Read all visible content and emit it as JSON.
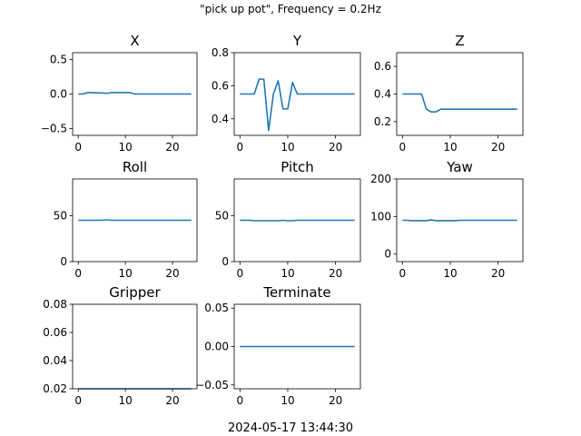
{
  "figure": {
    "suptitle": "\"pick up pot\", Frequency = 0.2Hz",
    "footer": "2024-05-17 13:44:30",
    "line_color": "#1f77b4"
  },
  "chart_data": [
    {
      "type": "line",
      "title": "X",
      "xlim": [
        -1.2,
        25.2
      ],
      "ylim": [
        -0.6,
        0.6
      ],
      "xticks": [
        0,
        10,
        20
      ],
      "yticks": [
        -0.5,
        0.0,
        0.5
      ],
      "ytick_labels": [
        "−0.5",
        "0.0",
        "0.5"
      ],
      "x": [
        0,
        1,
        2,
        3,
        4,
        5,
        6,
        7,
        8,
        9,
        10,
        11,
        12,
        13,
        14,
        15,
        16,
        17,
        18,
        19,
        20,
        21,
        22,
        23,
        24
      ],
      "y": [
        0.0,
        0.0,
        0.02,
        0.02,
        0.015,
        0.015,
        0.01,
        0.02,
        0.02,
        0.02,
        0.02,
        0.02,
        0.0,
        0.0,
        0.0,
        0.0,
        0.0,
        0.0,
        0.0,
        0.0,
        0.0,
        0.0,
        0.0,
        0.0,
        0.0
      ]
    },
    {
      "type": "line",
      "title": "Y",
      "xlim": [
        -1.2,
        25.2
      ],
      "ylim": [
        0.3,
        0.8
      ],
      "xticks": [
        0,
        10,
        20
      ],
      "yticks": [
        0.4,
        0.6,
        0.8
      ],
      "ytick_labels": [
        "0.4",
        "0.6",
        "0.8"
      ],
      "x": [
        0,
        1,
        2,
        3,
        4,
        5,
        6,
        7,
        8,
        9,
        10,
        11,
        12,
        13,
        14,
        15,
        16,
        17,
        18,
        19,
        20,
        21,
        22,
        23,
        24
      ],
      "y": [
        0.55,
        0.55,
        0.55,
        0.55,
        0.64,
        0.64,
        0.33,
        0.55,
        0.63,
        0.46,
        0.46,
        0.62,
        0.55,
        0.55,
        0.55,
        0.55,
        0.55,
        0.55,
        0.55,
        0.55,
        0.55,
        0.55,
        0.55,
        0.55,
        0.55
      ]
    },
    {
      "type": "line",
      "title": "Z",
      "xlim": [
        -1.2,
        25.2
      ],
      "ylim": [
        0.1,
        0.7
      ],
      "xticks": [
        0,
        10,
        20
      ],
      "yticks": [
        0.2,
        0.4,
        0.6
      ],
      "ytick_labels": [
        "0.2",
        "0.4",
        "0.6"
      ],
      "x": [
        0,
        1,
        2,
        3,
        4,
        5,
        6,
        7,
        8,
        9,
        10,
        11,
        12,
        13,
        14,
        15,
        16,
        17,
        18,
        19,
        20,
        21,
        22,
        23,
        24
      ],
      "y": [
        0.4,
        0.4,
        0.4,
        0.4,
        0.4,
        0.29,
        0.27,
        0.27,
        0.29,
        0.29,
        0.29,
        0.29,
        0.29,
        0.29,
        0.29,
        0.29,
        0.29,
        0.29,
        0.29,
        0.29,
        0.29,
        0.29,
        0.29,
        0.29,
        0.29
      ]
    },
    {
      "type": "line",
      "title": "Roll",
      "xlim": [
        -1.2,
        25.2
      ],
      "ylim": [
        0,
        90
      ],
      "xticks": [
        0,
        10,
        20
      ],
      "yticks": [
        0,
        50
      ],
      "ytick_labels": [
        "0",
        "50"
      ],
      "x": [
        0,
        1,
        2,
        3,
        4,
        5,
        6,
        7,
        8,
        9,
        10,
        11,
        12,
        13,
        14,
        15,
        16,
        17,
        18,
        19,
        20,
        21,
        22,
        23,
        24
      ],
      "y": [
        45,
        45,
        45,
        45,
        45,
        45,
        45.5,
        45,
        45,
        45,
        45,
        45,
        45,
        45,
        45,
        45,
        45,
        45,
        45,
        45,
        45,
        45,
        45,
        45,
        45
      ]
    },
    {
      "type": "line",
      "title": "Pitch",
      "xlim": [
        -1.2,
        25.2
      ],
      "ylim": [
        0,
        90
      ],
      "xticks": [
        0,
        10,
        20
      ],
      "yticks": [
        0,
        50
      ],
      "ytick_labels": [
        "0",
        "50"
      ],
      "x": [
        0,
        1,
        2,
        3,
        4,
        5,
        6,
        7,
        8,
        9,
        10,
        11,
        12,
        13,
        14,
        15,
        16,
        17,
        18,
        19,
        20,
        21,
        22,
        23,
        24
      ],
      "y": [
        45,
        45,
        45,
        44.5,
        44.5,
        44.5,
        44.5,
        44.5,
        44.5,
        45,
        44.5,
        44.5,
        45,
        45,
        45,
        45,
        45,
        45,
        45,
        45,
        45,
        45,
        45,
        45,
        45
      ]
    },
    {
      "type": "line",
      "title": "Yaw",
      "xlim": [
        -1.2,
        25.2
      ],
      "ylim": [
        -20,
        200
      ],
      "xticks": [
        0,
        10,
        20
      ],
      "yticks": [
        0,
        100,
        200
      ],
      "ytick_labels": [
        "0",
        "100",
        "200"
      ],
      "x": [
        0,
        1,
        2,
        3,
        4,
        5,
        6,
        7,
        8,
        9,
        10,
        11,
        12,
        13,
        14,
        15,
        16,
        17,
        18,
        19,
        20,
        21,
        22,
        23,
        24
      ],
      "y": [
        90,
        90,
        89,
        89,
        89,
        89,
        91,
        89,
        89,
        89,
        89,
        89,
        90,
        90,
        90,
        90,
        90,
        90,
        90,
        90,
        90,
        90,
        90,
        90,
        90
      ]
    },
    {
      "type": "line",
      "title": "Gripper",
      "xlim": [
        -1.2,
        25.2
      ],
      "ylim": [
        0.02,
        0.08
      ],
      "xticks": [
        0,
        10,
        20
      ],
      "yticks": [
        0.02,
        0.04,
        0.06,
        0.08
      ],
      "ytick_labels": [
        "0.02",
        "0.04",
        "0.06",
        "0.08"
      ],
      "x": [
        0,
        1,
        2,
        3,
        4,
        5,
        6,
        7,
        8,
        9,
        10,
        11,
        12,
        13,
        14,
        15,
        16,
        17,
        18,
        19,
        20,
        21,
        22,
        23,
        24
      ],
      "y": [
        0.02,
        0.02,
        0.02,
        0.02,
        0.02,
        0.02,
        0.02,
        0.02,
        0.02,
        0.02,
        0.02,
        0.02,
        0.02,
        0.02,
        0.02,
        0.02,
        0.02,
        0.02,
        0.02,
        0.02,
        0.02,
        0.02,
        0.02,
        0.02,
        0.02
      ]
    },
    {
      "type": "line",
      "title": "Terminate",
      "xlim": [
        -1.2,
        25.2
      ],
      "ylim": [
        -0.055,
        0.055
      ],
      "xticks": [
        0,
        10,
        20
      ],
      "yticks": [
        -0.05,
        0.0,
        0.05
      ],
      "ytick_labels": [
        "−0.05",
        "0.00",
        "0.05"
      ],
      "x": [
        0,
        1,
        2,
        3,
        4,
        5,
        6,
        7,
        8,
        9,
        10,
        11,
        12,
        13,
        14,
        15,
        16,
        17,
        18,
        19,
        20,
        21,
        22,
        23,
        24
      ],
      "y": [
        0,
        0,
        0,
        0,
        0,
        0,
        0,
        0,
        0,
        0,
        0,
        0,
        0,
        0,
        0,
        0,
        0,
        0,
        0,
        0,
        0,
        0,
        0,
        0,
        0
      ]
    }
  ]
}
